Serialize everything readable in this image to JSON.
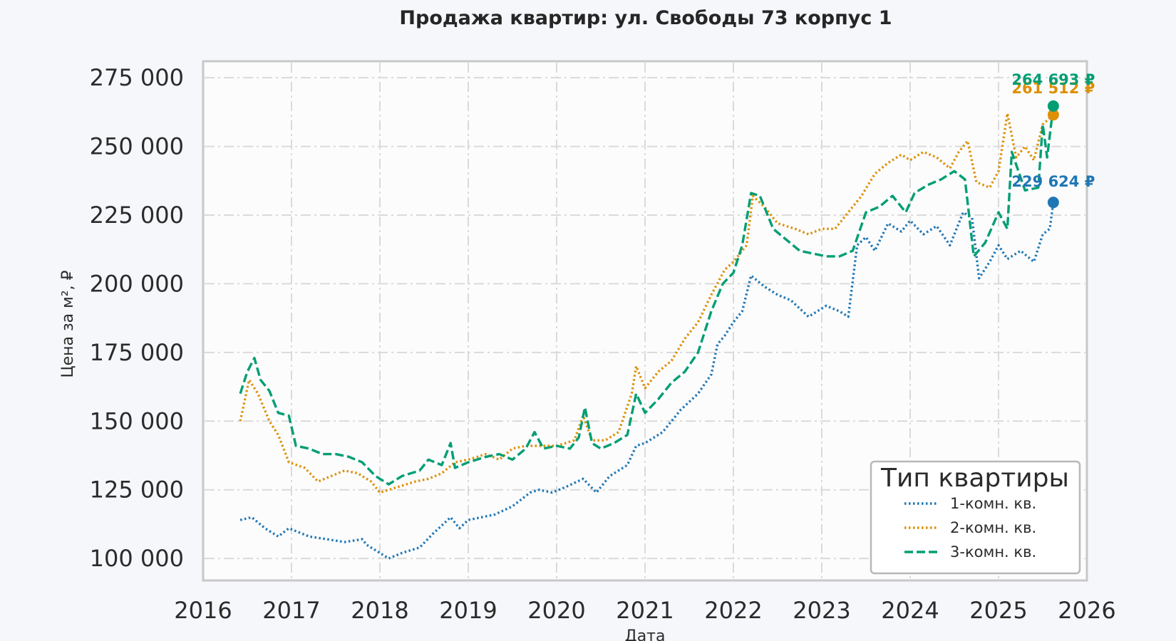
{
  "chart_data": {
    "type": "line",
    "title": "Продажа квартир: ул. Свободы 73 корпус 1",
    "xlabel": "Дата",
    "ylabel": "Цена за м², ₽",
    "xlim": [
      2016.0,
      2026.0
    ],
    "ylim": [
      92000,
      281000
    ],
    "x_ticks": [
      2016,
      2017,
      2018,
      2019,
      2020,
      2021,
      2022,
      2023,
      2024,
      2025,
      2026
    ],
    "x_tick_labels": [
      "2016",
      "2017",
      "2018",
      "2019",
      "2020",
      "2021",
      "2022",
      "2023",
      "2024",
      "2025",
      "2026"
    ],
    "y_ticks": [
      100000,
      125000,
      150000,
      175000,
      200000,
      225000,
      250000,
      275000
    ],
    "y_tick_labels": [
      "100 000",
      "125 000",
      "150 000",
      "175 000",
      "200 000",
      "225 000",
      "250 000",
      "275 000"
    ],
    "grid": true,
    "legend": {
      "title": "Тип квартиры",
      "position": "bottom-right"
    },
    "series": [
      {
        "name": "1-комн. кв.",
        "color": "#1f77b4",
        "style": "dotted",
        "points": [
          [
            2016.42,
            114000
          ],
          [
            2016.55,
            115000
          ],
          [
            2016.7,
            111000
          ],
          [
            2016.85,
            108000
          ],
          [
            2016.97,
            111000
          ],
          [
            2017.2,
            108000
          ],
          [
            2017.4,
            107000
          ],
          [
            2017.6,
            106000
          ],
          [
            2017.8,
            107000
          ],
          [
            2017.85,
            105000
          ],
          [
            2018.0,
            102000
          ],
          [
            2018.1,
            100000
          ],
          [
            2018.25,
            102000
          ],
          [
            2018.45,
            104000
          ],
          [
            2018.6,
            109000
          ],
          [
            2018.8,
            115000
          ],
          [
            2018.9,
            111000
          ],
          [
            2019.0,
            114000
          ],
          [
            2019.3,
            116000
          ],
          [
            2019.5,
            119000
          ],
          [
            2019.7,
            124000
          ],
          [
            2019.8,
            125000
          ],
          [
            2019.95,
            124000
          ],
          [
            2020.1,
            126000
          ],
          [
            2020.3,
            129000
          ],
          [
            2020.45,
            124000
          ],
          [
            2020.6,
            130000
          ],
          [
            2020.8,
            134000
          ],
          [
            2020.9,
            141000
          ],
          [
            2021.0,
            142000
          ],
          [
            2021.2,
            146000
          ],
          [
            2021.4,
            154000
          ],
          [
            2021.6,
            160000
          ],
          [
            2021.75,
            167000
          ],
          [
            2021.82,
            178000
          ],
          [
            2021.9,
            181000
          ],
          [
            2022.0,
            186000
          ],
          [
            2022.1,
            190000
          ],
          [
            2022.2,
            203000
          ],
          [
            2022.35,
            199000
          ],
          [
            2022.5,
            196000
          ],
          [
            2022.65,
            194000
          ],
          [
            2022.75,
            191000
          ],
          [
            2022.85,
            188000
          ],
          [
            2022.95,
            190000
          ],
          [
            2023.05,
            192000
          ],
          [
            2023.2,
            190000
          ],
          [
            2023.3,
            188000
          ],
          [
            2023.4,
            214000
          ],
          [
            2023.5,
            217000
          ],
          [
            2023.6,
            212000
          ],
          [
            2023.75,
            222000
          ],
          [
            2023.9,
            219000
          ],
          [
            2024.0,
            223000
          ],
          [
            2024.15,
            218000
          ],
          [
            2024.3,
            221000
          ],
          [
            2024.45,
            214000
          ],
          [
            2024.6,
            226000
          ],
          [
            2024.7,
            224000
          ],
          [
            2024.78,
            202000
          ],
          [
            2024.9,
            208000
          ],
          [
            2025.0,
            214000
          ],
          [
            2025.1,
            209000
          ],
          [
            2025.25,
            212000
          ],
          [
            2025.4,
            208000
          ],
          [
            2025.5,
            218000
          ],
          [
            2025.58,
            220000
          ],
          [
            2025.62,
            229624
          ]
        ],
        "last_value": 229624,
        "last_label": "229 624 ₽"
      },
      {
        "name": "2-комн. кв.",
        "color": "#de8f05",
        "style": "dotted",
        "points": [
          [
            2016.42,
            150000
          ],
          [
            2016.52,
            165000
          ],
          [
            2016.62,
            160000
          ],
          [
            2016.75,
            150000
          ],
          [
            2016.85,
            145000
          ],
          [
            2016.97,
            135000
          ],
          [
            2017.15,
            133000
          ],
          [
            2017.3,
            128000
          ],
          [
            2017.45,
            130000
          ],
          [
            2017.6,
            132000
          ],
          [
            2017.75,
            131000
          ],
          [
            2017.9,
            128000
          ],
          [
            2018.0,
            124000
          ],
          [
            2018.2,
            126000
          ],
          [
            2018.4,
            128000
          ],
          [
            2018.55,
            129000
          ],
          [
            2018.7,
            131000
          ],
          [
            2018.85,
            135000
          ],
          [
            2019.0,
            136000
          ],
          [
            2019.2,
            138000
          ],
          [
            2019.35,
            136000
          ],
          [
            2019.5,
            140000
          ],
          [
            2019.65,
            141000
          ],
          [
            2019.8,
            141000
          ],
          [
            2020.0,
            141000
          ],
          [
            2020.2,
            143000
          ],
          [
            2020.3,
            152000
          ],
          [
            2020.4,
            143000
          ],
          [
            2020.55,
            143000
          ],
          [
            2020.7,
            146000
          ],
          [
            2020.85,
            160000
          ],
          [
            2020.9,
            170000
          ],
          [
            2021.0,
            162000
          ],
          [
            2021.15,
            168000
          ],
          [
            2021.3,
            172000
          ],
          [
            2021.45,
            180000
          ],
          [
            2021.6,
            186000
          ],
          [
            2021.75,
            196000
          ],
          [
            2021.9,
            205000
          ],
          [
            2022.0,
            208000
          ],
          [
            2022.15,
            214000
          ],
          [
            2022.22,
            232000
          ],
          [
            2022.35,
            228000
          ],
          [
            2022.5,
            222000
          ],
          [
            2022.7,
            220000
          ],
          [
            2022.85,
            218000
          ],
          [
            2023.0,
            220000
          ],
          [
            2023.15,
            220000
          ],
          [
            2023.3,
            226000
          ],
          [
            2023.45,
            232000
          ],
          [
            2023.6,
            240000
          ],
          [
            2023.75,
            244000
          ],
          [
            2023.9,
            247000
          ],
          [
            2024.0,
            245000
          ],
          [
            2024.15,
            248000
          ],
          [
            2024.3,
            246000
          ],
          [
            2024.45,
            242000
          ],
          [
            2024.55,
            248000
          ],
          [
            2024.65,
            252000
          ],
          [
            2024.75,
            237000
          ],
          [
            2024.9,
            235000
          ],
          [
            2025.0,
            241000
          ],
          [
            2025.1,
            262000
          ],
          [
            2025.2,
            246000
          ],
          [
            2025.3,
            250000
          ],
          [
            2025.4,
            245000
          ],
          [
            2025.5,
            258000
          ],
          [
            2025.62,
            261512
          ]
        ],
        "last_value": 261512,
        "last_label": "261 512 ₽"
      },
      {
        "name": "3-комн. кв.",
        "color": "#029e73",
        "style": "dashed",
        "points": [
          [
            2016.42,
            160000
          ],
          [
            2016.5,
            168000
          ],
          [
            2016.58,
            173000
          ],
          [
            2016.65,
            165000
          ],
          [
            2016.75,
            161000
          ],
          [
            2016.85,
            153000
          ],
          [
            2016.97,
            152000
          ],
          [
            2017.05,
            141000
          ],
          [
            2017.2,
            140000
          ],
          [
            2017.35,
            138000
          ],
          [
            2017.5,
            138000
          ],
          [
            2017.65,
            137000
          ],
          [
            2017.8,
            135000
          ],
          [
            2017.95,
            130000
          ],
          [
            2018.1,
            127000
          ],
          [
            2018.25,
            130000
          ],
          [
            2018.45,
            132000
          ],
          [
            2018.55,
            136000
          ],
          [
            2018.7,
            134000
          ],
          [
            2018.8,
            142000
          ],
          [
            2018.85,
            133000
          ],
          [
            2019.0,
            135000
          ],
          [
            2019.2,
            137000
          ],
          [
            2019.35,
            138000
          ],
          [
            2019.5,
            136000
          ],
          [
            2019.65,
            140000
          ],
          [
            2019.75,
            146000
          ],
          [
            2019.85,
            140000
          ],
          [
            2020.0,
            141000
          ],
          [
            2020.15,
            140000
          ],
          [
            2020.25,
            144000
          ],
          [
            2020.32,
            155000
          ],
          [
            2020.4,
            142000
          ],
          [
            2020.5,
            140000
          ],
          [
            2020.65,
            142000
          ],
          [
            2020.8,
            145000
          ],
          [
            2020.9,
            160000
          ],
          [
            2021.0,
            153000
          ],
          [
            2021.15,
            158000
          ],
          [
            2021.3,
            164000
          ],
          [
            2021.45,
            168000
          ],
          [
            2021.6,
            175000
          ],
          [
            2021.75,
            190000
          ],
          [
            2021.88,
            200000
          ],
          [
            2022.0,
            204000
          ],
          [
            2022.1,
            214000
          ],
          [
            2022.2,
            233000
          ],
          [
            2022.3,
            232000
          ],
          [
            2022.45,
            220000
          ],
          [
            2022.6,
            216000
          ],
          [
            2022.75,
            212000
          ],
          [
            2022.9,
            211000
          ],
          [
            2023.05,
            210000
          ],
          [
            2023.2,
            210000
          ],
          [
            2023.35,
            212000
          ],
          [
            2023.5,
            226000
          ],
          [
            2023.65,
            228000
          ],
          [
            2023.8,
            232000
          ],
          [
            2023.95,
            226000
          ],
          [
            2024.05,
            233000
          ],
          [
            2024.2,
            236000
          ],
          [
            2024.35,
            238000
          ],
          [
            2024.5,
            241000
          ],
          [
            2024.62,
            238000
          ],
          [
            2024.72,
            210000
          ],
          [
            2024.85,
            215000
          ],
          [
            2025.0,
            226000
          ],
          [
            2025.1,
            220000
          ],
          [
            2025.15,
            248000
          ],
          [
            2025.3,
            234000
          ],
          [
            2025.45,
            235000
          ],
          [
            2025.5,
            258000
          ],
          [
            2025.55,
            246000
          ],
          [
            2025.62,
            264693
          ]
        ],
        "last_value": 264693,
        "last_label": "264 693 ₽"
      }
    ]
  }
}
